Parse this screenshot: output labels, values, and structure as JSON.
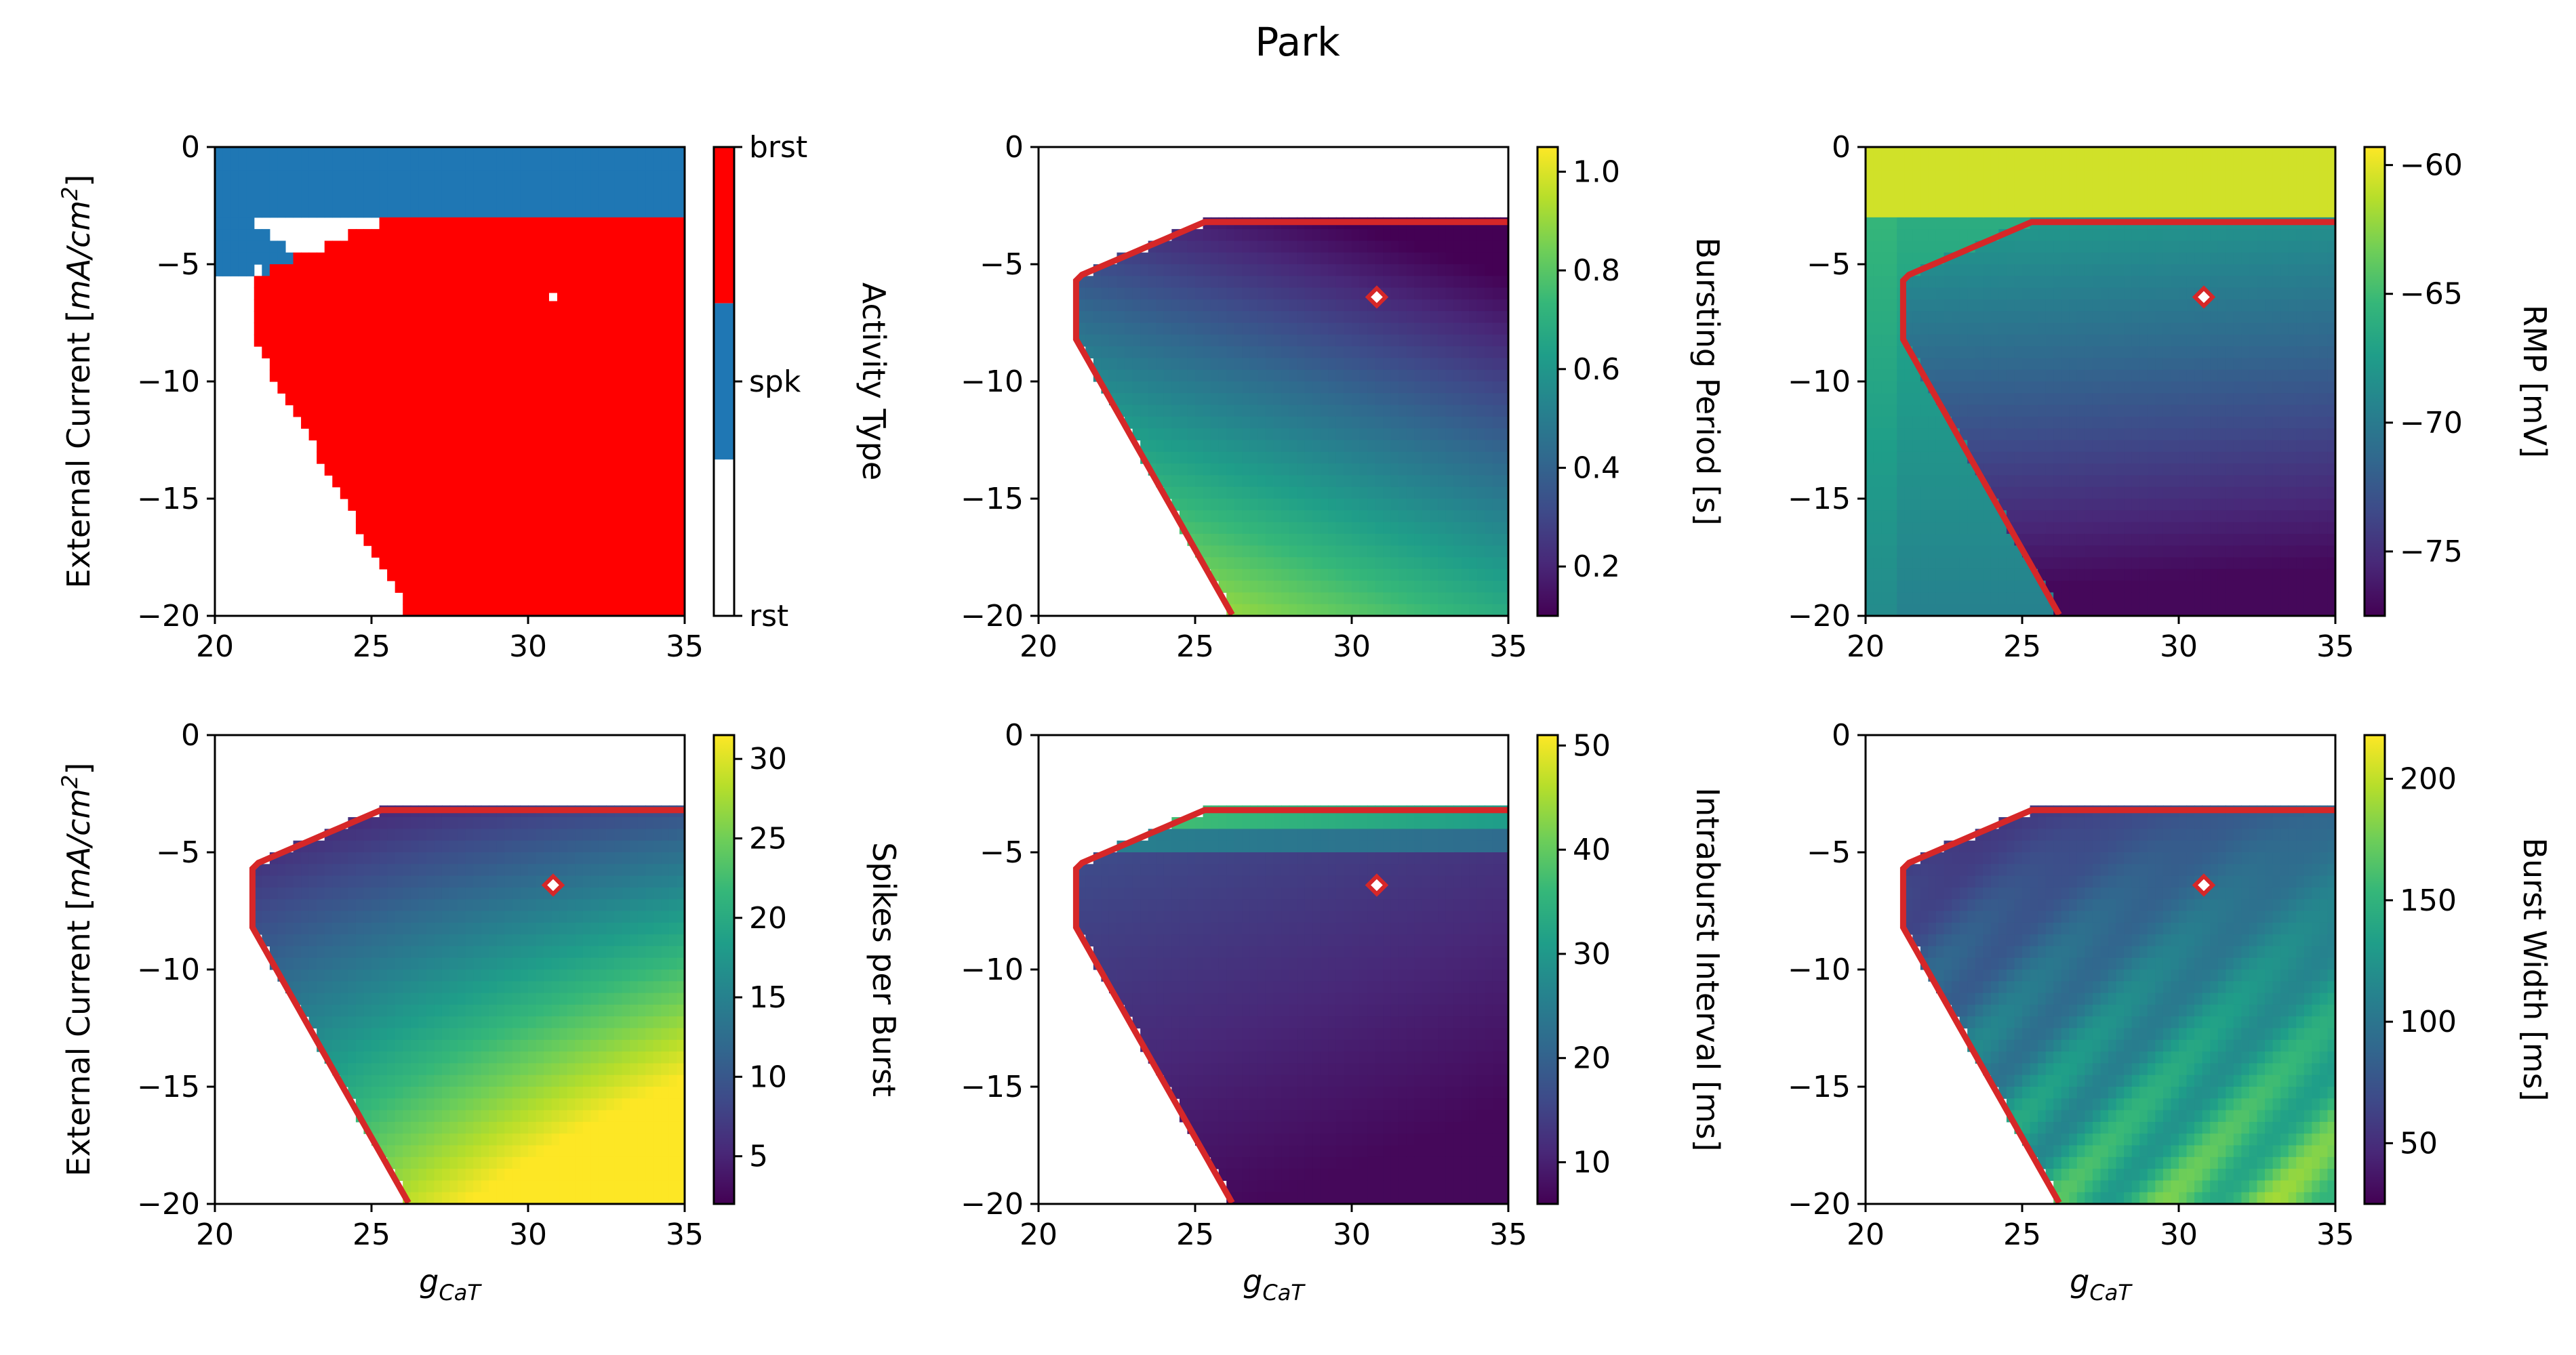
{
  "title": "Park",
  "colors": {
    "spk": "#1f77b4",
    "brst": "#ff0000",
    "rst": "#ffffff",
    "boundary": "#d62728",
    "viridis": [
      "#440154",
      "#482878",
      "#3e4a89",
      "#31688e",
      "#26828e",
      "#1f9e89",
      "#35b779",
      "#6ece58",
      "#b5de2b",
      "#fde725"
    ]
  },
  "chart_data": [
    {
      "type": "heatmap",
      "panel": "activity-type",
      "xlabel": "",
      "ylabel": "External Current [mA/cm^2]",
      "xlim": [
        20,
        35
      ],
      "ylim": [
        -20,
        0
      ],
      "xticks": [
        "20",
        "25",
        "30",
        "35"
      ],
      "yticks": [
        "0",
        "−5",
        "−10",
        "−15",
        "−20"
      ],
      "colorbar": {
        "label": "Activity Type",
        "ticks": [
          "brst",
          "spk",
          "rst"
        ]
      },
      "categorical": true,
      "marker": {
        "x": 30.8,
        "y": -6.4
      }
    },
    {
      "type": "heatmap",
      "panel": "bursting-period",
      "xlabel": "",
      "ylabel": "",
      "xlim": [
        20,
        35
      ],
      "ylim": [
        -20,
        0
      ],
      "xticks": [
        "20",
        "25",
        "30",
        "35"
      ],
      "yticks": [
        "0",
        "−5",
        "−10",
        "−15",
        "−20"
      ],
      "colorbar": {
        "label": "Bursting Period [s]",
        "ticks": [
          "1.0",
          "0.8",
          "0.6",
          "0.4",
          "0.2"
        ],
        "tick_values": [
          1.0,
          0.8,
          0.6,
          0.4,
          0.2
        ],
        "range": [
          0.1,
          1.05
        ]
      },
      "marker": {
        "x": 30.8,
        "y": -6.4
      }
    },
    {
      "type": "heatmap",
      "panel": "rmp",
      "xlabel": "",
      "ylabel": "",
      "xlim": [
        20,
        35
      ],
      "ylim": [
        -20,
        0
      ],
      "xticks": [
        "20",
        "25",
        "30",
        "35"
      ],
      "yticks": [
        "0",
        "−5",
        "−10",
        "−15",
        "−20"
      ],
      "colorbar": {
        "label": "RMP [mV]",
        "ticks": [
          "−60",
          "−65",
          "−70",
          "−75"
        ],
        "tick_values": [
          -60,
          -65,
          -70,
          -75
        ],
        "range": [
          -77.5,
          -59.3
        ]
      },
      "marker": {
        "x": 30.8,
        "y": -6.4
      }
    },
    {
      "type": "heatmap",
      "panel": "spikes-per-burst",
      "xlabel": "g_CaT",
      "ylabel": "External Current [mA/cm^2]",
      "xlim": [
        20,
        35
      ],
      "ylim": [
        -20,
        0
      ],
      "xticks": [
        "20",
        "25",
        "30",
        "35"
      ],
      "yticks": [
        "0",
        "−5",
        "−10",
        "−15",
        "−20"
      ],
      "colorbar": {
        "label": "Spikes per Burst",
        "ticks": [
          "30",
          "25",
          "20",
          "15",
          "10",
          "5"
        ],
        "tick_values": [
          30,
          25,
          20,
          15,
          10,
          5
        ],
        "range": [
          2,
          31.5
        ]
      },
      "marker": {
        "x": 30.8,
        "y": -6.4
      }
    },
    {
      "type": "heatmap",
      "panel": "intraburst-interval",
      "xlabel": "g_CaT",
      "ylabel": "",
      "xlim": [
        20,
        35
      ],
      "ylim": [
        -20,
        0
      ],
      "xticks": [
        "20",
        "25",
        "30",
        "35"
      ],
      "yticks": [
        "0",
        "−5",
        "−10",
        "−15",
        "−20"
      ],
      "colorbar": {
        "label": "Intraburst Interval [ms]",
        "ticks": [
          "50",
          "40",
          "30",
          "20",
          "10"
        ],
        "tick_values": [
          50,
          40,
          30,
          20,
          10
        ],
        "range": [
          6,
          51
        ]
      },
      "marker": {
        "x": 30.8,
        "y": -6.4
      }
    },
    {
      "type": "heatmap",
      "panel": "burst-width",
      "xlabel": "g_CaT",
      "ylabel": "",
      "xlim": [
        20,
        35
      ],
      "ylim": [
        -20,
        0
      ],
      "xticks": [
        "20",
        "25",
        "30",
        "35"
      ],
      "yticks": [
        "0",
        "−5",
        "−10",
        "−15",
        "−20"
      ],
      "colorbar": {
        "label": "Burst Width [ms]",
        "ticks": [
          "200",
          "150",
          "100",
          "50"
        ],
        "tick_values": [
          200,
          150,
          100,
          50
        ],
        "range": [
          25,
          218
        ]
      },
      "marker": {
        "x": 30.8,
        "y": -6.4
      }
    }
  ]
}
